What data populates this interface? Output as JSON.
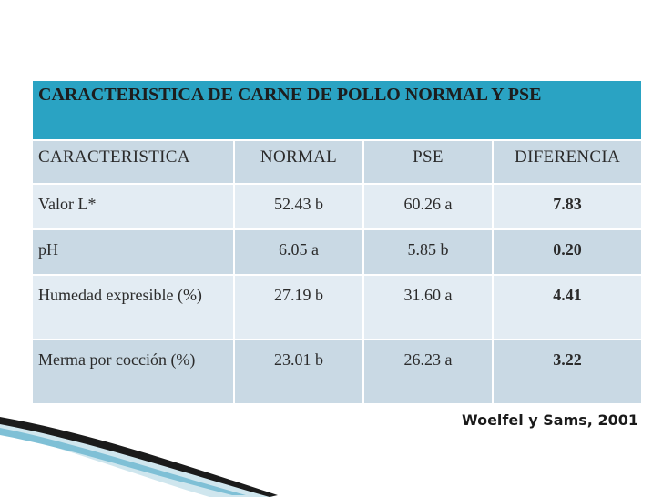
{
  "table": {
    "title": "CARACTERISTICA DE CARNE DE POLLO NORMAL Y PSE",
    "headers": [
      "CARACTERISTICA",
      "NORMAL",
      "PSE",
      "DIFERENCIA"
    ],
    "rows": [
      {
        "characteristic": "Valor L*",
        "normal": "52.43 b",
        "pse": "60.26 a",
        "difference": "7.83"
      },
      {
        "characteristic": "pH",
        "normal": "6.05 a",
        "pse": "5.85 b",
        "difference": "0.20"
      },
      {
        "characteristic": "Humedad expresible (%)",
        "normal": "27.19 b",
        "pse": "31.60 a",
        "difference": "4.41"
      },
      {
        "characteristic": "Merma por cocción (%)",
        "normal": "23.01 b",
        "pse": "26.23 a",
        "difference": "3.22"
      }
    ]
  },
  "citation": "Woelfel y Sams, 2001",
  "colors": {
    "title_bg": "#2aa3c3",
    "row_dark": "#c9d9e4",
    "row_light": "#e3ecf3"
  }
}
